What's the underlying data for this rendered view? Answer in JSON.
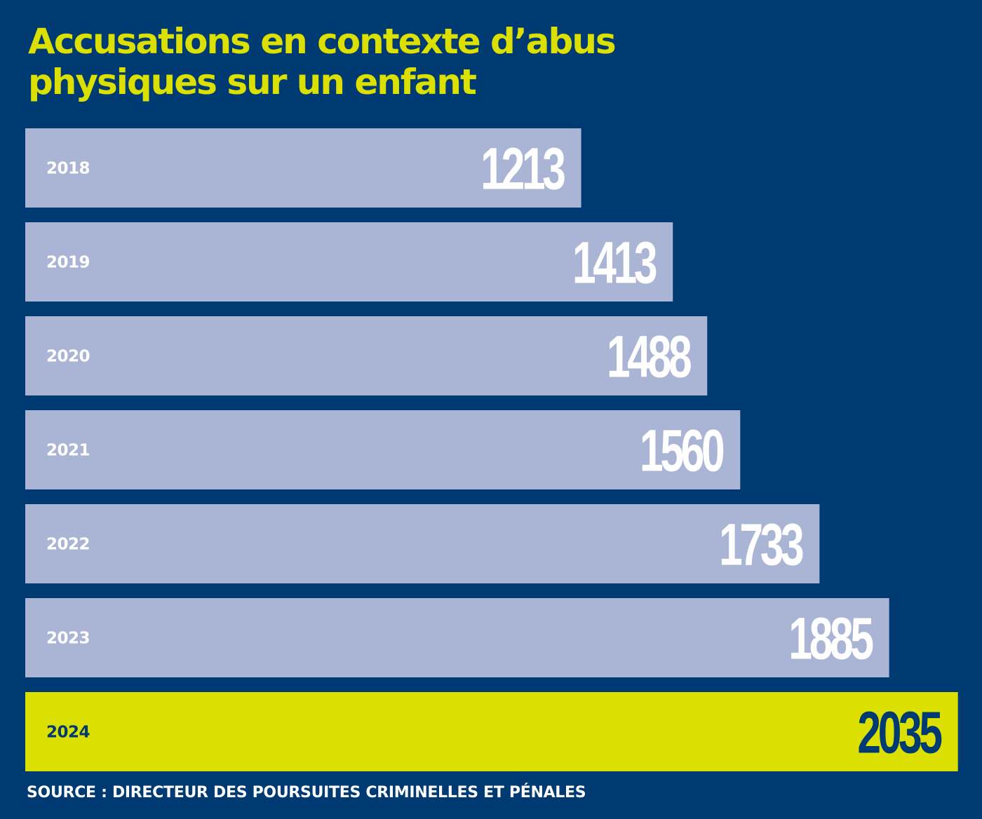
{
  "chart_data": {
    "type": "bar",
    "orientation": "horizontal",
    "title_lines": [
      "Accusations en contexte d’abus",
      "physiques sur un enfant"
    ],
    "categories": [
      "2018",
      "2019",
      "2020",
      "2021",
      "2022",
      "2023",
      "2024"
    ],
    "values": [
      1213,
      1413,
      1488,
      1560,
      1733,
      1885,
      2035
    ],
    "value_labels": [
      "1213",
      "1413",
      "1488",
      "1560",
      "1733",
      "1885",
      "2035"
    ],
    "highlighted_category": "2024",
    "grid": false,
    "legend": "none",
    "xlabel": "",
    "ylabel": ""
  },
  "source": "SOURCE : DIRECTEUR DES POURSUITES CRIMINELLES ET PÉNALES",
  "colors": {
    "background": "#003a72",
    "bar": "#aab5d5",
    "highlight_bar": "#dbe000",
    "title": "#dbe000",
    "value_text": "#ffffff",
    "highlight_value_text": "#003a72",
    "year_text": "#ffffff",
    "highlight_year_text": "#003a72"
  }
}
